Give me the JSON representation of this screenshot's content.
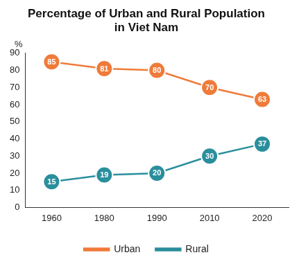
{
  "chart_data": {
    "type": "line",
    "title": "Percentage of Urban and Rural Population in Viet Nam",
    "ylabel": "%",
    "categories": [
      "1960",
      "1980",
      "1990",
      "2010",
      "2020"
    ],
    "series": [
      {
        "name": "Urban",
        "color": "#ef7b3a",
        "values": [
          85,
          81,
          80,
          70,
          63
        ]
      },
      {
        "name": "Rural",
        "color": "#2a8f9c",
        "values": [
          15,
          19,
          20,
          30,
          37
        ]
      }
    ],
    "ylim": [
      0,
      90
    ],
    "yticks": [
      0,
      10,
      20,
      30,
      40,
      50,
      60,
      70,
      80,
      90
    ],
    "grid": false,
    "legend": "bottom",
    "data_labels": true,
    "marker": "circle"
  }
}
